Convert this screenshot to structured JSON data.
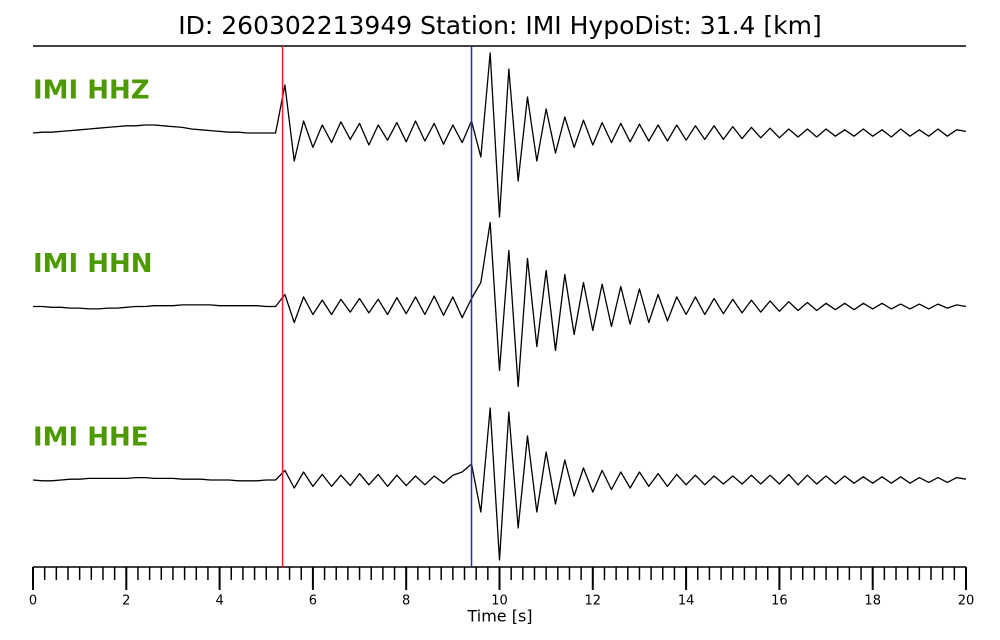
{
  "chart_data": {
    "type": "seismogram",
    "title": "ID: 260302213949   Station: IMI   HypoDist:    31.4 [km]",
    "x_label": "Time [s]",
    "xlim": [
      0,
      20
    ],
    "xticks": [
      0,
      2,
      4,
      6,
      8,
      10,
      12,
      14,
      16,
      18,
      20
    ],
    "xminorticks": [
      0,
      0.25,
      0.5,
      0.75,
      1,
      1.25,
      1.5,
      1.75,
      2,
      2.25,
      2.5,
      2.75,
      3,
      3.25,
      3.5,
      3.75,
      4,
      4.25,
      4.5,
      4.75,
      5,
      5.25,
      5.5,
      5.75,
      6,
      6.25,
      6.5,
      6.75,
      7,
      7.25,
      7.5,
      7.75,
      8,
      8.25,
      8.5,
      8.75,
      9,
      9.25,
      9.5,
      9.75,
      10,
      10.25,
      10.5,
      10.75,
      11,
      11.25,
      11.5,
      11.75,
      12,
      12.25,
      12.5,
      12.75,
      13,
      13.25,
      13.5,
      13.75,
      14,
      14.25,
      14.5,
      14.75,
      15,
      15.25,
      15.5,
      15.75,
      16,
      16.25,
      16.5,
      16.75,
      17,
      17.25,
      17.5,
      17.75,
      18,
      18.25,
      18.5,
      18.75,
      19,
      19.25,
      19.5,
      19.75,
      20
    ],
    "label_color": "#4c9a00",
    "picks": [
      {
        "x": 5.35,
        "color": "#e8231b"
      },
      {
        "x": 9.4,
        "color": "#1f2fc8"
      }
    ],
    "x": [
      0,
      0.2,
      0.4,
      0.6,
      0.8,
      1,
      1.2,
      1.4,
      1.6,
      1.8,
      2,
      2.2,
      2.4,
      2.6,
      2.8,
      3,
      3.2,
      3.4,
      3.6,
      3.8,
      4,
      4.2,
      4.4,
      4.6,
      4.8,
      5,
      5.2,
      5.4,
      5.6,
      5.8,
      6,
      6.2,
      6.4,
      6.6,
      6.8,
      7,
      7.2,
      7.4,
      7.6,
      7.8,
      8,
      8.2,
      8.4,
      8.6,
      8.8,
      9,
      9.2,
      9.4,
      9.6,
      9.8,
      10,
      10.2,
      10.4,
      10.6,
      10.8,
      11,
      11.2,
      11.4,
      11.6,
      11.8,
      12,
      12.2,
      12.4,
      12.6,
      12.8,
      13,
      13.2,
      13.4,
      13.6,
      13.8,
      14,
      14.2,
      14.4,
      14.6,
      14.8,
      15,
      15.2,
      15.4,
      15.6,
      15.8,
      16,
      16.2,
      16.4,
      16.6,
      16.8,
      17,
      17.2,
      17.4,
      17.6,
      17.8,
      18,
      18.2,
      18.4,
      18.6,
      18.8,
      19,
      19.2,
      19.4,
      19.6,
      19.8,
      20
    ],
    "series": [
      {
        "name": "IMI HHZ",
        "color": "#000000",
        "values": [
          0,
          0.01,
          0.01,
          0.02,
          0.03,
          0.04,
          0.05,
          0.06,
          0.07,
          0.08,
          0.09,
          0.09,
          0.1,
          0.1,
          0.09,
          0.08,
          0.07,
          0.05,
          0.04,
          0.03,
          0.02,
          0.01,
          0.01,
          0,
          0,
          0,
          0,
          0.6,
          -0.35,
          0.15,
          -0.18,
          0.1,
          -0.12,
          0.14,
          -0.08,
          0.12,
          -0.15,
          0.1,
          -0.09,
          0.13,
          -0.11,
          0.15,
          -0.1,
          0.12,
          -0.14,
          0.1,
          -0.12,
          0.15,
          -0.3,
          1.0,
          -1.05,
          0.8,
          -0.6,
          0.45,
          -0.35,
          0.3,
          -0.25,
          0.2,
          -0.18,
          0.16,
          -0.15,
          0.13,
          -0.12,
          0.12,
          -0.11,
          0.11,
          -0.1,
          0.1,
          -0.1,
          0.1,
          -0.09,
          0.09,
          -0.08,
          0.09,
          -0.08,
          0.08,
          -0.07,
          0.07,
          -0.06,
          0.06,
          -0.06,
          0.05,
          -0.05,
          0.05,
          -0.05,
          0.05,
          -0.04,
          0.04,
          -0.04,
          0.05,
          -0.04,
          0.04,
          -0.05,
          0.05,
          -0.04,
          0.04,
          -0.04,
          0.05,
          -0.04,
          0.04,
          0.02
        ]
      },
      {
        "name": "IMI HHN",
        "color": "#000000",
        "values": [
          0,
          0,
          -0.01,
          -0.01,
          -0.02,
          -0.02,
          -0.03,
          -0.03,
          -0.02,
          -0.02,
          -0.01,
          0,
          0,
          0.01,
          0.01,
          0.01,
          0.02,
          0.02,
          0.02,
          0.02,
          0.01,
          0.01,
          0.01,
          0.01,
          0.01,
          0,
          0,
          0.15,
          -0.2,
          0.12,
          -0.1,
          0.08,
          -0.1,
          0.09,
          -0.07,
          0.1,
          -0.08,
          0.09,
          -0.1,
          0.11,
          -0.09,
          0.12,
          -0.1,
          0.13,
          -0.11,
          0.12,
          -0.14,
          0.1,
          0.3,
          1.05,
          -0.8,
          0.7,
          -1.0,
          0.6,
          -0.5,
          0.45,
          -0.55,
          0.4,
          -0.35,
          0.3,
          -0.3,
          0.28,
          -0.25,
          0.25,
          -0.22,
          0.22,
          -0.2,
          0.15,
          -0.18,
          0.12,
          -0.1,
          0.12,
          -0.1,
          0.1,
          -0.09,
          0.09,
          -0.08,
          0.08,
          -0.07,
          0.07,
          -0.06,
          0.06,
          -0.05,
          0.05,
          -0.05,
          0.04,
          -0.04,
          0.04,
          -0.04,
          0.04,
          -0.03,
          0.04,
          -0.03,
          0.03,
          -0.03,
          0.03,
          -0.03,
          0.03,
          -0.02,
          0.02,
          0
        ]
      },
      {
        "name": "IMI HHE",
        "color": "#000000",
        "values": [
          0,
          -0.01,
          -0.01,
          0,
          0.01,
          0.01,
          0.02,
          0.02,
          0.02,
          0.02,
          0.02,
          0.03,
          0.03,
          0.02,
          0.02,
          0.02,
          0.01,
          0.01,
          0.01,
          0,
          0,
          0,
          -0.01,
          -0.01,
          -0.01,
          0,
          0,
          0.12,
          -0.1,
          0.1,
          -0.08,
          0.07,
          -0.08,
          0.06,
          -0.07,
          0.08,
          -0.06,
          0.07,
          -0.08,
          0.06,
          -0.07,
          0.05,
          -0.06,
          0.05,
          -0.04,
          0.06,
          0.1,
          0.2,
          -0.4,
          0.9,
          -1.0,
          0.85,
          -0.6,
          0.55,
          -0.4,
          0.35,
          -0.3,
          0.25,
          -0.2,
          0.15,
          -0.15,
          0.12,
          -0.12,
          0.1,
          -0.1,
          0.1,
          -0.08,
          0.08,
          -0.08,
          0.07,
          -0.06,
          0.06,
          -0.06,
          0.05,
          -0.05,
          0.05,
          -0.05,
          0.06,
          -0.05,
          0.06,
          -0.05,
          0.07,
          -0.06,
          0.06,
          -0.05,
          0.05,
          -0.05,
          0.05,
          -0.04,
          0.04,
          -0.04,
          0.04,
          -0.04,
          0.04,
          -0.04,
          0.03,
          -0.03,
          0.03,
          -0.03,
          0.03,
          0.01
        ]
      }
    ]
  }
}
